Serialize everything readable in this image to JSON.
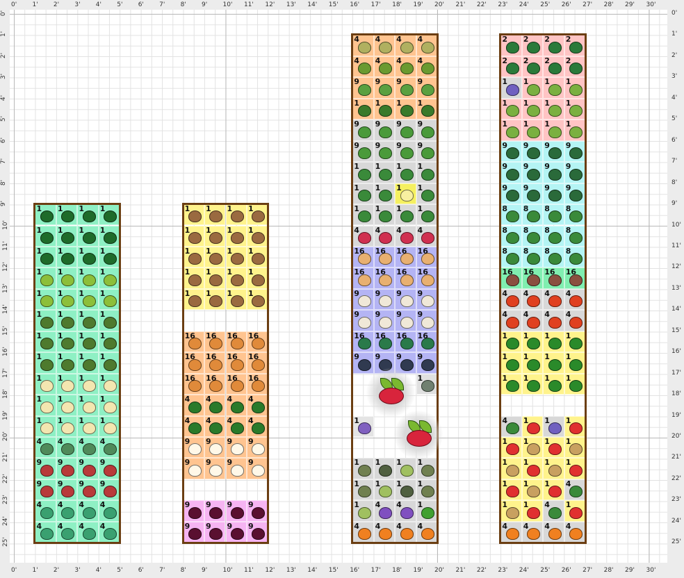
{
  "ruler": {
    "x_labels": [
      "0'",
      "1'",
      "2'",
      "3'",
      "4'",
      "5'",
      "6'",
      "7'",
      "8'",
      "9'",
      "10'",
      "11'",
      "12'",
      "13'",
      "14'",
      "15'",
      "16'",
      "17'",
      "18'",
      "19'",
      "20'",
      "21'",
      "22'",
      "23'",
      "24'",
      "25'",
      "26'",
      "27'",
      "28'",
      "29'",
      "30'"
    ],
    "y_labels": [
      "0'",
      "1'",
      "2'",
      "3'",
      "4'",
      "5'",
      "6'",
      "7'",
      "8'",
      "9'",
      "10'",
      "11'",
      "12'",
      "13'",
      "14'",
      "15'",
      "16'",
      "17'",
      "18'",
      "19'",
      "20'",
      "21'",
      "22'",
      "23'",
      "24'",
      "25'"
    ]
  },
  "plants": {
    "cab": {
      "icon": "cabbage-icon",
      "count": "1",
      "bg": "#8ef0c4",
      "fg": "#1e6b2a"
    },
    "bru": {
      "icon": "brussels-sprouts-icon",
      "count": "1",
      "bg": "#8ef0c4",
      "fg": "#8cbf3a"
    },
    "bro": {
      "icon": "broccoli-icon",
      "count": "1",
      "bg": "#8ef0c4",
      "fg": "#4e7a2e"
    },
    "cau": {
      "icon": "cauliflower-icon",
      "count": "1",
      "bg": "#8ef0c4",
      "fg": "#f3e6b0"
    },
    "let": {
      "icon": "lettuce-icon",
      "count": "4",
      "bg": "#8ef0c4",
      "fg": "#4f8a5a"
    },
    "bet": {
      "icon": "beet-icon",
      "count": "9",
      "bg": "#8ef0c4",
      "fg": "#b83a3a"
    },
    "spi": {
      "icon": "spinach-icon",
      "count": "4",
      "bg": "#8ef0c4",
      "fg": "#3aa070"
    },
    "pot": {
      "icon": "potato-icon",
      "count": "1",
      "bg": "#fff38c",
      "fg": "#9a6a40"
    },
    "car": {
      "icon": "carrot-icon",
      "count": "16",
      "bg": "#ffc490",
      "fg": "#e08a3a"
    },
    "tur": {
      "icon": "turnip-icon",
      "count": "4",
      "bg": "#ffc490",
      "fg": "#2a7a2a"
    },
    "par": {
      "icon": "parsnip-icon",
      "count": "9",
      "bg": "#ffc490",
      "fg": "#fff8e8"
    },
    "rbt": {
      "icon": "beet-icon",
      "count": "9",
      "bg": "#f6b4f2",
      "fg": "#5a1030"
    },
    "dil": {
      "icon": "dill-icon",
      "count": "4",
      "bg": "#ffc490",
      "fg": "#b0b060"
    },
    "prs": {
      "icon": "parsley-icon",
      "count": "4",
      "bg": "#ffc490",
      "fg": "#6a9a30"
    },
    "cel": {
      "icon": "celery-icon",
      "count": "9",
      "bg": "#ffc490",
      "fg": "#5aa040"
    },
    "cil": {
      "icon": "cilantro-icon",
      "count": "1",
      "bg": "#ffc490",
      "fg": "#3a7a2a"
    },
    "lcs": {
      "icon": "lettuce-icon",
      "count": "9",
      "bg": "#d8d8d8",
      "fg": "#4a9a3a"
    },
    "pea": {
      "icon": "pea-icon",
      "count": "1",
      "bg": "#d8d8d8",
      "fg": "#3a8a3a"
    },
    "tmt": {
      "icon": "tomatillo-icon",
      "count": "1",
      "bg": "#f5f060",
      "fg": "#f8f0a0"
    },
    "rad": {
      "icon": "radish-icon",
      "count": "4",
      "bg": "#d8d8d8",
      "fg": "#d03050"
    },
    "oni": {
      "icon": "onion-icon",
      "count": "16",
      "bg": "#b4b4f4",
      "fg": "#e8b070"
    },
    "gar": {
      "icon": "garlic-icon",
      "count": "9",
      "bg": "#b4b4f4",
      "fg": "#f0e8d8"
    },
    "sca": {
      "icon": "scallion-icon",
      "count": "16",
      "bg": "#b4b4f4",
      "fg": "#2a7a4a"
    },
    "lek": {
      "icon": "leek-icon",
      "count": "9",
      "bg": "#b4b4f4",
      "fg": "#303a50"
    },
    "sag": {
      "icon": "sage-icon",
      "count": "1",
      "bg": "#e0e0e0",
      "fg": "#708070"
    },
    "lav": {
      "icon": "lavender-icon",
      "count": "1",
      "bg": "#e4e4e4",
      "fg": "#8060c0"
    },
    "thy": {
      "icon": "thyme-icon",
      "count": "1",
      "bg": "#d8d8d8",
      "fg": "#708050"
    },
    "ros": {
      "icon": "rosemary-icon",
      "count": "1",
      "bg": "#d8d8d8",
      "fg": "#506040"
    },
    "tar": {
      "icon": "tarragon-icon",
      "count": "1",
      "bg": "#d8d8d8",
      "fg": "#a0c060"
    },
    "pan": {
      "icon": "pansy-icon",
      "count": "4",
      "bg": "#d8d8d8",
      "fg": "#8050c0"
    },
    "min": {
      "icon": "mint-icon",
      "count": "1",
      "bg": "#d8d8d8",
      "fg": "#40a030"
    },
    "mar": {
      "icon": "marigold-icon",
      "count": "4",
      "bg": "#d8d8d8",
      "fg": "#f08020"
    },
    "edm": {
      "icon": "edamame-icon",
      "count": "2",
      "bg": "#ffc4c4",
      "fg": "#2a7a3a"
    },
    "zuc": {
      "icon": "zucchini-icon",
      "count": "1",
      "bg": "#ffc4c4",
      "fg": "#7ab040"
    },
    "bor": {
      "icon": "borage-icon",
      "count": "1",
      "bg": "#d8d8d8",
      "fg": "#7060c0"
    },
    "kal": {
      "icon": "kale-icon",
      "count": "9",
      "bg": "#b4f4f4",
      "fg": "#2a6a3a"
    },
    "bea": {
      "icon": "bean-icon",
      "count": "8",
      "bg": "#b4f4f4",
      "fg": "#3a8a3a"
    },
    "rdg": {
      "icon": "radish-icon",
      "count": "16",
      "bg": "#80eeb0",
      "fg": "#8a5040"
    },
    "nas": {
      "icon": "nasturtium-icon",
      "count": "4",
      "bg": "#d8d8d8",
      "fg": "#e04020"
    },
    "pep": {
      "icon": "pepper-icon",
      "count": "1",
      "bg": "#fff38c",
      "fg": "#2a8a2a"
    },
    "bas": {
      "icon": "basil-icon",
      "count": "4",
      "bg": "#d8d8d8",
      "fg": "#3a8a3a"
    },
    "tom": {
      "icon": "tomato-icon",
      "count": "1",
      "bg": "#fff38c",
      "fg": "#e03030"
    },
    "pnt": {
      "icon": "peanut-icon",
      "count": "1",
      "bg": "#fff38c",
      "fg": "#c8a060"
    }
  },
  "beds": [
    {
      "name": "bed-1",
      "rows": [
        "cab cab cab cab",
        "cab cab cab cab",
        "cab cab cab cab",
        "bru bru bru bru",
        "bru bru bru bru",
        "bro bro bro bro",
        "bro bro bro bro",
        "bro bro bro bro",
        "cau cau cau cau",
        "cau cau cau cau",
        "cau cau cau cau",
        "let let let let",
        "bet bet bet bet",
        "bet bet bet bet",
        "spi spi spi spi",
        "spi spi spi spi"
      ]
    },
    {
      "name": "bed-2",
      "rows": [
        "pot pot pot pot",
        "pot pot pot pot",
        "pot pot pot pot",
        "pot pot pot pot",
        "pot pot pot pot",
        "- - - -",
        "car car car car",
        "car car car car",
        "car car car car",
        "tur tur tur tur",
        "tur tur tur tur",
        "par par par par",
        "par par par par",
        "- - - -",
        "rbt rbt rbt rbt",
        "rbt rbt rbt rbt"
      ]
    },
    {
      "name": "bed-3",
      "rows": [
        "dil dil dil dil",
        "prs prs prs prs",
        "cel cel cel cel",
        "cil cil cil cil",
        "lcs lcs lcs lcs",
        "lcs lcs lcs lcs",
        "pea pea pea pea",
        "pea pea tmt pea",
        "pea pea pea pea",
        "rad rad rad rad",
        "oni oni oni oni",
        "oni oni oni oni",
        "gar gar gar gar",
        "gar gar gar gar",
        "sca sca sca sca",
        "lek lek lek lek",
        "- - - sag",
        "- - - -",
        "lav - - -",
        "- - - -",
        "thy ros tar thy",
        "thy tar ros thy",
        "tar pan pan min",
        "mar mar mar mar"
      ],
      "extras": [
        {
          "icon": "raspberry-icon"
        },
        {
          "icon": "raspberry-icon"
        }
      ]
    },
    {
      "name": "bed-4",
      "rows": [
        "edm edm edm edm",
        "edm edm edm edm",
        "bor zuc zuc zuc",
        "zuc zuc zuc zuc",
        "zuc zuc zuc zuc",
        "kal kal kal kal",
        "kal kal kal kal",
        "kal kal kal kal",
        "bea bea bea bea",
        "bea bea bea bea",
        "bea bea bea bea",
        "rdg rdg rdg rdg",
        "nas nas nas nas",
        "nas nas nas nas",
        "pep pep pep pep",
        "pep pep pep pep",
        "pep pep pep pep",
        "- - - -",
        "bas tom bor tom",
        "tom pnt tom pnt",
        "pnt tom pnt tom",
        "tom pnt tom bas",
        "pnt tom bas tom",
        "mar mar mar mar"
      ]
    }
  ]
}
